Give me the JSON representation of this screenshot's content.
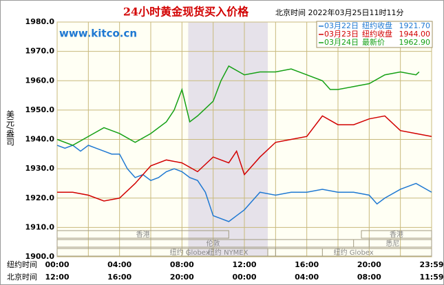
{
  "chart_data": {
    "type": "line",
    "title": "24小时黄金现货买入价格",
    "subtitle": "北京时间  2022年03月25日11时11分",
    "watermark": "www.kitco.cn",
    "y_label": "美元/盎司",
    "x_row_label": "纽约时间",
    "x2_row_label": "北京时间",
    "xlim": [
      0,
      24
    ],
    "xticks": [
      {
        "value": 0,
        "label": "00:00"
      },
      {
        "value": 4,
        "label": "04:00"
      },
      {
        "value": 8,
        "label": "08:00"
      },
      {
        "value": 12,
        "label": "12:00"
      },
      {
        "value": 16,
        "label": "16:00"
      },
      {
        "value": 20,
        "label": "20:00"
      },
      {
        "value": 24,
        "label": "23:59"
      }
    ],
    "xticks_beijing": [
      "12:00",
      "16:00",
      "20:00",
      "00:00",
      "04:00",
      "08:00",
      "11:59"
    ],
    "ylim": [
      1900,
      1980
    ],
    "yticks": [
      {
        "value": 1900,
        "label": "1900.0"
      },
      {
        "value": 1910,
        "label": "1910.0"
      },
      {
        "value": 1920,
        "label": "1920.0"
      },
      {
        "value": 1930,
        "label": "1930.0"
      },
      {
        "value": 1940,
        "label": "1940.0"
      },
      {
        "value": 1950,
        "label": "1950.0"
      },
      {
        "value": 1960,
        "label": "1960.0"
      },
      {
        "value": 1970,
        "label": "1970.0"
      },
      {
        "value": 1980,
        "label": "1980.0"
      }
    ],
    "grid": true,
    "shade": [
      8.4,
      13.5
    ],
    "sessions": [
      {
        "label": "香港",
        "start": 0,
        "end": 11,
        "row": 0
      },
      {
        "label": "伦敦",
        "start": 0,
        "end": 20,
        "row": 1
      },
      {
        "label": "纽约 NYMEX",
        "start": 8.4,
        "end": 13.5,
        "row": 2
      },
      {
        "label": "纽约 Globex",
        "start": 0,
        "end": 17,
        "row": 2
      },
      {
        "label": "香港",
        "start": 19.5,
        "end": 24,
        "row": 0
      },
      {
        "label": "悉尼",
        "start": 19,
        "end": 24,
        "row": 1
      },
      {
        "label": "纽约 Globex",
        "start": 14,
        "end": 24,
        "row": 2
      }
    ],
    "series": [
      {
        "name": "03月22日",
        "legend_label": "纽约收盘",
        "legend_value": "1921.70",
        "color": "#1e78d2",
        "x": [
          0,
          0.5,
          1,
          1.5,
          2,
          2.5,
          3,
          3.5,
          4,
          4.5,
          5,
          5.5,
          6,
          6.5,
          7,
          7.5,
          8,
          8.5,
          9,
          9.5,
          10,
          10.5,
          11,
          11.5,
          12,
          12.5,
          13,
          14,
          15,
          16,
          17,
          18,
          19,
          20,
          20.5,
          21,
          22,
          23,
          24
        ],
        "values": [
          1938,
          1937,
          1938,
          1936,
          1938,
          1937,
          1936,
          1935,
          1935,
          1930,
          1927,
          1928,
          1926,
          1927,
          1929,
          1930,
          1929,
          1927,
          1926,
          1922,
          1914,
          1913,
          1912,
          1914,
          1916,
          1919,
          1922,
          1921,
          1922,
          1922,
          1923,
          1922,
          1922,
          1921,
          1918,
          1920,
          1923,
          1925,
          1922
        ]
      },
      {
        "name": "03月23日",
        "legend_label": "纽约收盘",
        "legend_value": "1944.00",
        "color": "#d20000",
        "x": [
          0,
          1,
          2,
          3,
          4,
          5,
          6,
          7,
          8,
          9,
          10,
          11,
          11.5,
          12,
          13,
          14,
          15,
          16,
          17,
          18,
          19,
          20,
          21,
          22,
          23,
          24
        ],
        "values": [
          1922,
          1922,
          1921,
          1919,
          1920,
          1925,
          1931,
          1933,
          1932,
          1929,
          1934,
          1932,
          1936,
          1928,
          1934,
          1939,
          1940,
          1941,
          1948,
          1945,
          1945,
          1947,
          1948,
          1943,
          1942,
          1941
        ]
      },
      {
        "name": "03月24日",
        "legend_label": "最新价",
        "legend_value": "1962.90",
        "color": "#14a014",
        "x": [
          0,
          1,
          2,
          3,
          4,
          5,
          6,
          7,
          7.5,
          8,
          8.5,
          9,
          10,
          10.5,
          11,
          12,
          13,
          14,
          15,
          16,
          17,
          17.5,
          18,
          19,
          20,
          21,
          22,
          23,
          23.2
        ],
        "values": [
          1940,
          1938,
          1941,
          1944,
          1942,
          1939,
          1942,
          1946,
          1950,
          1957,
          1946,
          1948,
          1953,
          1960,
          1965,
          1962,
          1963,
          1963,
          1964,
          1962,
          1960,
          1957,
          1957,
          1958,
          1959,
          1962,
          1963,
          1962,
          1963
        ]
      }
    ]
  }
}
